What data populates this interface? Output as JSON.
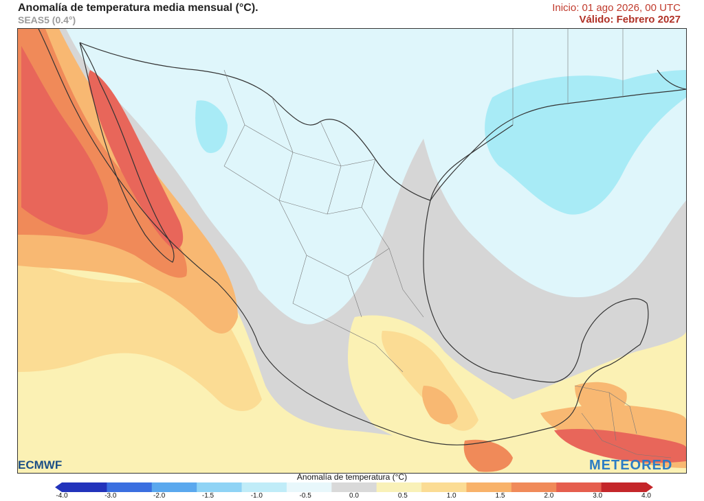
{
  "header": {
    "title": "Anomalía de temperatura media mensual (°C).",
    "model": "SEAS5 (0.4°)",
    "init": "Inicio: 01 ago 2026, 00 UTC",
    "valid": "Válido: Febrero 2027"
  },
  "logos": {
    "left": "ECMWF",
    "right": "METEORED"
  },
  "colorbar": {
    "title": "Anomalía de temperatura (°C)",
    "ticks": [
      "-4.0",
      "-3.0",
      "-2.0",
      "-1.5",
      "-1.0",
      "-0.5",
      "0.0",
      "0.5",
      "1.0",
      "1.5",
      "2.0",
      "3.0",
      "4.0"
    ],
    "colors": [
      "#2233bb",
      "#3a6fe0",
      "#5aa8ee",
      "#8fd3f5",
      "#c0ecf8",
      "#e8f7fb",
      "#d9d9d9",
      "#f9f1b8",
      "#fbdc94",
      "#f8b26a",
      "#f08a59",
      "#e55e4e",
      "#c4262a"
    ]
  },
  "map": {
    "palette": {
      "ocean_neutral": "#d6d6d6",
      "cool_light": "#dff6fb",
      "cool": "#a8ebf6",
      "warm_light": "#fbf1b4",
      "warm": "#fbdc94",
      "warm_med": "#f8b872",
      "hot": "#f08a59",
      "very_hot": "#e8665a",
      "land": "#e3e3e3",
      "border": "#333333"
    }
  }
}
